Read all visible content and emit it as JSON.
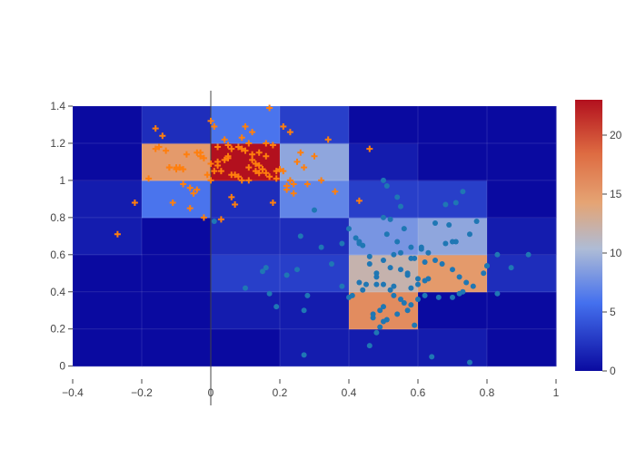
{
  "chart_data": {
    "type": "heatmap",
    "x_bins": [
      -0.4,
      -0.2,
      0,
      0.2,
      0.4,
      0.6,
      0.8,
      1.0
    ],
    "y_bins": [
      0,
      0.2,
      0.4,
      0.6,
      0.8,
      1.0,
      1.2,
      1.4
    ],
    "z": [
      [
        0,
        0,
        0,
        1,
        1,
        1,
        0
      ],
      [
        0,
        0,
        1,
        1,
        16,
        0,
        0
      ],
      [
        0,
        0,
        3,
        3,
        12,
        15,
        2
      ],
      [
        1,
        0,
        2,
        2,
        8,
        9,
        1
      ],
      [
        1,
        6,
        2,
        7,
        3,
        3,
        0
      ],
      [
        0,
        15,
        23,
        9,
        1,
        0,
        0
      ],
      [
        0,
        2,
        6,
        3,
        0,
        0,
        0
      ]
    ],
    "zlim": [
      0,
      23
    ],
    "xlim": [
      -0.4,
      1.0
    ],
    "ylim": [
      -0.07,
      1.4
    ],
    "x_ticks": [
      -0.4,
      -0.2,
      0,
      0.2,
      0.4,
      0.6,
      0.8,
      1
    ],
    "x_tick_labels": [
      "−0.4",
      "−0.2",
      "0",
      "0.2",
      "0.4",
      "0.6",
      "0.8",
      "1"
    ],
    "y_ticks": [
      0,
      0.2,
      0.4,
      0.6,
      0.8,
      1.0,
      1.2,
      1.4
    ],
    "y_tick_labels": [
      "0",
      "0.2",
      "0.4",
      "0.6",
      "0.8",
      "1",
      "1.2",
      "1.4"
    ],
    "colorbar_ticks": [
      0,
      5,
      10,
      15,
      20
    ],
    "colorbar_tick_labels": [
      "0",
      "5",
      "10",
      "15",
      "20"
    ],
    "colorscale": [
      [
        0,
        "#0a0aa0"
      ],
      [
        0.25,
        "#4470ee"
      ],
      [
        0.45,
        "#aebcd6"
      ],
      [
        0.62,
        "#e5a474"
      ],
      [
        0.8,
        "#de6c42"
      ],
      [
        1,
        "#b2101e"
      ]
    ],
    "grid": true,
    "series": [
      {
        "marker": "circle",
        "color": "#1f77b4",
        "x": [
          0.5,
          0.41,
          0.42,
          0.43,
          0.46,
          0.48,
          0.5,
          0.52,
          0.53,
          0.55,
          0.56,
          0.58,
          0.6,
          0.62,
          0.47,
          0.49,
          0.51,
          0.54,
          0.57,
          0.59,
          0.44,
          0.45,
          0.48,
          0.52,
          0.55,
          0.57,
          0.61,
          0.63,
          0.65,
          0.67,
          0.7,
          0.72,
          0.74,
          0.76,
          0.79,
          0.8,
          0.68,
          0.71,
          0.73,
          0.66,
          0.62,
          0.6,
          0.58,
          0.53,
          0.49,
          0.5,
          0.51,
          0.52,
          0.54,
          0.56,
          0.46,
          0.48,
          0.47,
          0.5,
          0.55,
          0.59,
          0.62,
          0.65,
          0.69,
          0.71,
          0.73,
          0.75,
          0.77,
          0.7,
          0.63,
          0.57,
          0.53,
          0.48,
          0.44,
          0.4,
          0.38,
          0.35,
          0.32,
          0.28,
          0.27,
          0.25,
          0.22,
          0.17,
          0.15,
          0.1,
          0.16,
          0.19,
          0.26,
          0.3,
          0.38,
          0.43,
          0.46,
          0.51,
          0.54,
          0.58,
          0.64,
          0.75,
          0.83,
          0.87,
          0.92,
          0.83,
          0.8,
          0.72,
          0.7,
          0.68,
          0.61,
          0.6,
          0.58,
          0.55,
          0.5,
          0.43,
          0.01,
          0.27,
          0.5,
          0.4
        ],
        "y": [
          0.32,
          0.38,
          0.69,
          0.66,
          0.55,
          0.5,
          0.44,
          0.41,
          0.38,
          0.36,
          0.34,
          0.33,
          0.47,
          0.46,
          0.26,
          0.3,
          0.25,
          0.28,
          0.3,
          0.22,
          0.41,
          0.44,
          0.48,
          0.53,
          0.52,
          0.49,
          0.63,
          0.61,
          0.57,
          0.55,
          0.52,
          0.48,
          0.45,
          0.43,
          0.5,
          0.54,
          0.66,
          0.67,
          0.4,
          0.37,
          0.38,
          0.44,
          0.42,
          0.43,
          0.21,
          0.24,
          0.71,
          0.79,
          0.67,
          0.74,
          0.11,
          0.18,
          0.28,
          0.57,
          0.61,
          0.58,
          0.56,
          0.77,
          0.76,
          0.88,
          0.94,
          0.71,
          0.78,
          0.37,
          0.47,
          0.5,
          0.6,
          0.44,
          0.65,
          0.37,
          0.43,
          0.55,
          0.64,
          0.38,
          0.3,
          0.52,
          0.49,
          0.39,
          0.51,
          0.42,
          0.53,
          0.32,
          0.7,
          0.84,
          0.66,
          0.67,
          0.59,
          0.97,
          0.91,
          0.64,
          0.05,
          0.02,
          0.6,
          0.53,
          0.6,
          0.39,
          0.54,
          0.39,
          0.67,
          0.87,
          0.64,
          0.36,
          0.58,
          0.86,
          1.0,
          0.45,
          0.78,
          0.06,
          0.8,
          0.74
        ]
      },
      {
        "marker": "cross",
        "color": "#ff7f0e",
        "x": [
          -0.27,
          -0.22,
          -0.18,
          -0.16,
          -0.15,
          -0.14,
          -0.12,
          -0.11,
          -0.1,
          -0.09,
          -0.08,
          -0.07,
          -0.06,
          -0.05,
          -0.04,
          -0.03,
          -0.02,
          -0.01,
          0.0,
          0.01,
          0.02,
          0.03,
          0.04,
          0.05,
          0.06,
          0.07,
          0.08,
          0.09,
          0.1,
          0.11,
          0.12,
          0.13,
          0.14,
          0.15,
          0.16,
          0.17,
          0.18,
          0.19,
          0.2,
          0.21,
          0.22,
          0.23,
          0.24,
          0.25,
          0.26,
          0.28,
          0.3,
          0.32,
          0.34,
          0.36,
          0.46,
          0.43,
          0.0,
          0.01,
          0.02,
          0.04,
          0.06,
          0.08,
          0.1,
          0.12,
          0.14,
          0.16,
          0.05,
          0.07,
          0.09,
          0.11,
          0.13,
          0.15,
          0.17,
          0.19,
          0.22,
          0.24,
          0.27,
          0.03,
          -0.02,
          -0.04,
          -0.06,
          -0.08,
          -0.1,
          -0.13,
          -0.16,
          -0.12,
          -0.03,
          0.0,
          0.02,
          0.05,
          0.09,
          0.11,
          0.14,
          0.16,
          0.18,
          0.21,
          0.23,
          0.12,
          0.06
        ],
        "y": [
          0.71,
          0.88,
          1.01,
          1.28,
          1.18,
          1.24,
          1.07,
          0.88,
          1.06,
          1.07,
          0.98,
          1.14,
          0.96,
          0.93,
          1.15,
          1.13,
          1.12,
          1.03,
          1.32,
          1.29,
          1.18,
          1.05,
          1.22,
          1.13,
          1.17,
          0.87,
          1.02,
          1.23,
          1.29,
          1.2,
          1.11,
          1.05,
          1.15,
          1.06,
          1.13,
          1.39,
          1.19,
          1.05,
          1.06,
          1.29,
          0.97,
          1.26,
          0.93,
          1.1,
          1.15,
          0.98,
          1.13,
          1.0,
          1.22,
          0.94,
          1.17,
          0.89,
          1.0,
          1.05,
          1.08,
          1.11,
          1.03,
          1.18,
          1.16,
          1.14,
          1.08,
          1.04,
          1.12,
          1.03,
          1.0,
          1.07,
          1.09,
          1.06,
          1.02,
          1.01,
          0.95,
          0.98,
          1.07,
          0.79,
          0.8,
          0.95,
          0.85,
          1.06,
          1.07,
          1.16,
          1.17,
          1.07,
          1.15,
          1.09,
          1.1,
          1.19,
          1.17,
          1.0,
          1.04,
          1.2,
          0.88,
          1.05,
          1.0,
          1.26,
          0.91
        ]
      }
    ]
  }
}
